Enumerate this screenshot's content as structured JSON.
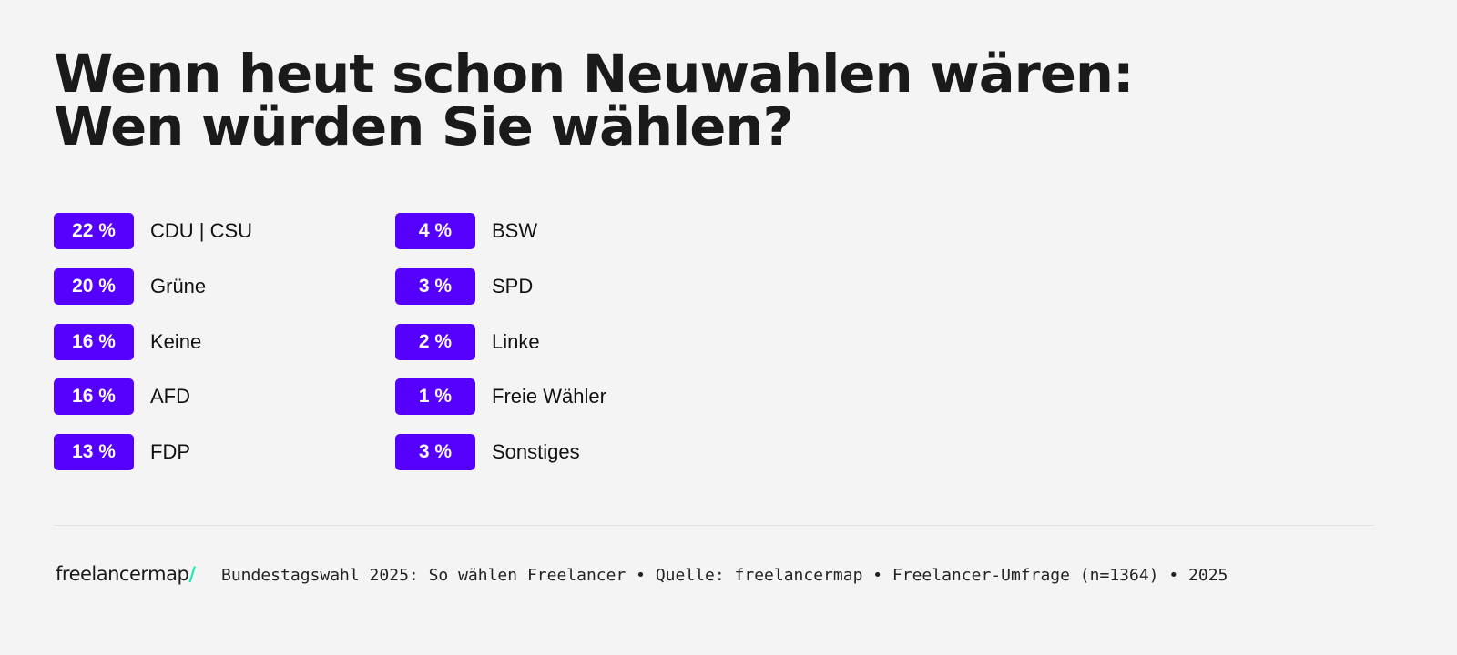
{
  "title": {
    "line1": "Wenn heut schon Neuwahlen wären:",
    "line2": "Wen würden Sie wählen?"
  },
  "colors": {
    "badge": "#5500ff",
    "logo_accent": "#1ee8b8"
  },
  "chart_data": {
    "type": "table",
    "unit": "%",
    "categories": [
      "CDU | CSU",
      "Grüne",
      "Keine",
      "AFD",
      "FDP",
      "BSW",
      "SPD",
      "Linke",
      "Freie Wähler",
      "Sonstiges"
    ],
    "values": [
      22,
      20,
      16,
      16,
      13,
      4,
      3,
      2,
      1,
      3
    ],
    "labels": [
      "22 %",
      "20 %",
      "16 %",
      "16 %",
      "13 %",
      "4 %",
      "3 %",
      "2 %",
      "1 %",
      "3 %"
    ]
  },
  "footer": {
    "logo_text": "freelancermap",
    "logo_slash": "/",
    "source": "Bundestagswahl 2025: So wählen Freelancer • Quelle: freelancermap • Freelancer-Umfrage (n=1364) • 2025"
  }
}
